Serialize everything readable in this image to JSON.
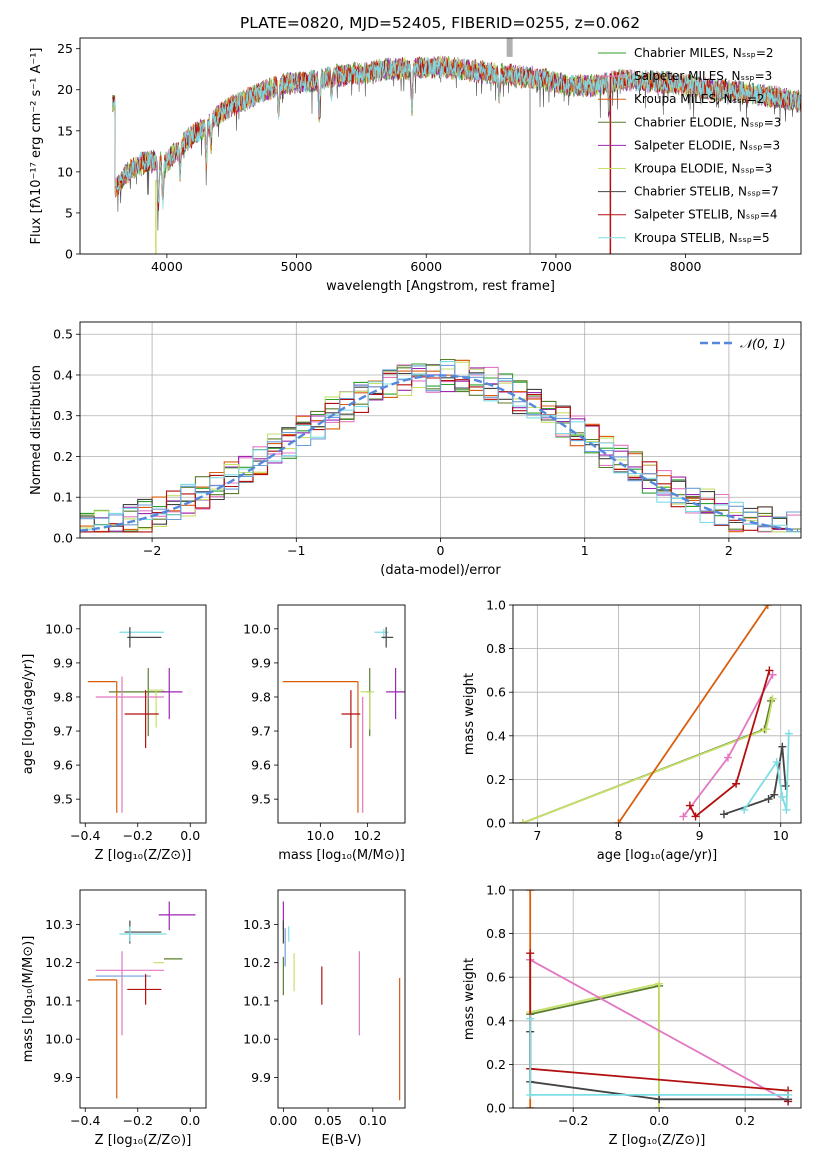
{
  "chart_data": [
    {
      "id": "spectrum",
      "type": "line",
      "title": "PLATE=0820, MJD=52405, FIBERID=0255, z=0.062",
      "xlabel": "wavelength [Angstrom, rest frame]",
      "ylabel": "Flux [fλ10⁻¹⁷ erg cm⁻² s⁻¹ A⁻¹]",
      "xlim": [
        3330,
        8890
      ],
      "ylim": [
        0,
        26.3
      ],
      "xticks": [
        4000,
        5000,
        6000,
        7000,
        8000
      ],
      "yticks": [
        0,
        5,
        10,
        15,
        20,
        25
      ],
      "legend_position": "upper right",
      "series": [
        {
          "name": "Chabrier MILES, Nₛₛₚ=2",
          "color": "#2ca02c"
        },
        {
          "name": "Salpeter MILES, Nₛₛₚ=3",
          "color": "#e377c2"
        },
        {
          "name": "Kroupa MILES, Nₛₛₚ=2",
          "color": "#d95f0e"
        },
        {
          "name": "Chabrier ELODIE, Nₛₛₚ=3",
          "color": "#5a7d2c"
        },
        {
          "name": "Salpeter ELODIE, Nₛₛₚ=3",
          "color": "#9c27b0"
        },
        {
          "name": "Kroupa ELODIE, Nₛₛₚ=3",
          "color": "#c6e06b"
        },
        {
          "name": "Chabrier STELIB, Nₛₛₚ=7",
          "color": "#444444"
        },
        {
          "name": "Salpeter STELIB, Nₛₛₚ=4",
          "color": "#b30f0f"
        },
        {
          "name": "Kroupa STELIB, Nₛₛₚ=5",
          "color": "#7ddde6"
        }
      ],
      "continuum": [
        [
          3600,
          8.0
        ],
        [
          3700,
          10.0
        ],
        [
          3800,
          11.0
        ],
        [
          3900,
          11.3
        ],
        [
          4000,
          11.2
        ],
        [
          4100,
          13.0
        ],
        [
          4200,
          14.5
        ],
        [
          4300,
          15.5
        ],
        [
          4400,
          17.0
        ],
        [
          4500,
          18.0
        ],
        [
          4700,
          19.5
        ],
        [
          4900,
          20.8
        ],
        [
          5100,
          21.0
        ],
        [
          5300,
          21.7
        ],
        [
          5500,
          22.0
        ],
        [
          5700,
          22.5
        ],
        [
          5900,
          22.6
        ],
        [
          6100,
          22.8
        ],
        [
          6300,
          22.5
        ],
        [
          6500,
          22.0
        ],
        [
          6700,
          21.7
        ],
        [
          6900,
          21.3
        ],
        [
          7100,
          20.5
        ],
        [
          7300,
          20.5
        ],
        [
          7500,
          21.2
        ],
        [
          7700,
          21.0
        ],
        [
          7900,
          20.8
        ],
        [
          8100,
          20.3
        ],
        [
          8300,
          19.9
        ],
        [
          8500,
          19.6
        ],
        [
          8700,
          19.1
        ],
        [
          8890,
          18.5
        ]
      ],
      "absorption_features": [
        {
          "x": 3934,
          "depth": 5.5
        },
        {
          "x": 3969,
          "depth": 4.5
        },
        {
          "x": 4102,
          "depth": 3.0
        },
        {
          "x": 4304,
          "depth": 4.5
        },
        {
          "x": 4341,
          "depth": 3.0
        },
        {
          "x": 4861,
          "depth": 3.0
        },
        {
          "x": 5175,
          "depth": 4.0
        },
        {
          "x": 5270,
          "depth": 2.0
        },
        {
          "x": 5890,
          "depth": 4.5
        },
        {
          "x": 6563,
          "depth": 2.5
        },
        {
          "x": 7410,
          "depth": 3.0
        }
      ]
    },
    {
      "id": "residuals",
      "type": "step-histogram",
      "xlabel": "(data-model)/error",
      "ylabel": "Normed distribution",
      "xlim": [
        -2.5,
        2.5
      ],
      "ylim": [
        0,
        0.53
      ],
      "xticks": [
        -2,
        -1,
        0,
        1,
        2
      ],
      "yticks": [
        0.0,
        0.1,
        0.2,
        0.3,
        0.4,
        0.5
      ],
      "bin_width": 0.1,
      "grid": true,
      "legend": [
        {
          "name": "𝒩(0, 1)",
          "color": "#5588dd",
          "style": "dashed"
        }
      ],
      "reference_curve": "normal(0,1) pdf",
      "series_colors": [
        "#2ca02c",
        "#e377c2",
        "#d95f0e",
        "#5a7d2c",
        "#9c27b0",
        "#c6e06b",
        "#444444",
        "#b30f0f",
        "#7ddde6",
        "#6f9fd8"
      ]
    },
    {
      "id": "age_vs_Z",
      "type": "errorbar",
      "xlabel": "Z [log₁₀(Z/Z⊙)]",
      "ylabel": "age  [log₁₀(age/yr)]",
      "xlim": [
        -0.42,
        0.06
      ],
      "ylim": [
        9.43,
        10.07
      ],
      "xticks": [
        -0.4,
        -0.2,
        0.0
      ],
      "yticks": [
        9.5,
        9.6,
        9.7,
        9.8,
        9.9,
        10.0
      ],
      "points": [
        {
          "x": -0.16,
          "y": 9.815,
          "xerr": [
            0.15,
            0.07
          ],
          "yerr": [
            0.13,
            0.07
          ],
          "color": "#5a7d2c"
        },
        {
          "x": -0.08,
          "y": 9.815,
          "xerr": [
            0.03,
            0.05
          ],
          "yerr": [
            0.08,
            0.07
          ],
          "color": "#9c27b0"
        },
        {
          "x": -0.13,
          "y": 9.82,
          "xerr": [
            0.03,
            0.03
          ],
          "yerr": [
            0.11,
            0.0
          ],
          "color": "#c6e06b"
        },
        {
          "x": -0.28,
          "y": 9.845,
          "xerr": [
            0.11,
            0.0
          ],
          "yerr": [
            0.385,
            0.0
          ],
          "color": "#d95f0e"
        },
        {
          "x": -0.26,
          "y": 9.8,
          "xerr": [
            0.1,
            0.16
          ],
          "yerr": [
            0.34,
            0.06
          ],
          "color": "#e377c2"
        },
        {
          "x": -0.23,
          "y": 9.99,
          "xerr": [
            0.04,
            0.13
          ],
          "yerr": [
            0.02,
            0.01
          ],
          "color": "#7ddde6"
        },
        {
          "x": -0.23,
          "y": 9.975,
          "xerr": [
            0.01,
            0.12
          ],
          "yerr": [
            0.03,
            0.03
          ],
          "color": "#444444"
        },
        {
          "x": -0.17,
          "y": 9.75,
          "xerr": [
            0.08,
            0.05
          ],
          "yerr": [
            0.1,
            0.07
          ],
          "color": "#b30f0f"
        }
      ]
    },
    {
      "id": "age_vs_mass",
      "type": "errorbar",
      "xlabel": "mass [log₁₀(M/M⊙)]",
      "ylabel": "",
      "xlim": [
        9.82,
        10.36
      ],
      "ylim": [
        9.43,
        10.07
      ],
      "xticks": [
        10.0,
        10.2
      ],
      "yticks": [
        9.5,
        9.6,
        9.7,
        9.8,
        9.9,
        10.0
      ],
      "points": [
        {
          "x": 10.21,
          "y": 9.815,
          "xerr": [
            0.015,
            0.005
          ],
          "yerr": [
            0.13,
            0.07
          ],
          "color": "#5a7d2c"
        },
        {
          "x": 10.32,
          "y": 9.815,
          "xerr": [
            0.04,
            0.04
          ],
          "yerr": [
            0.08,
            0.07
          ],
          "color": "#9c27b0"
        },
        {
          "x": 10.21,
          "y": 9.815,
          "xerr": [
            0.04,
            0.02
          ],
          "yerr": [
            0.11,
            0.0
          ],
          "color": "#c6e06b"
        },
        {
          "x": 10.16,
          "y": 9.845,
          "xerr": [
            0.32,
            0.0
          ],
          "yerr": [
            0.385,
            0.0
          ],
          "color": "#d95f0e"
        },
        {
          "x": 10.18,
          "y": 9.8,
          "xerr": [
            0.0,
            0.0
          ],
          "yerr": [
            0.34,
            0.0
          ],
          "color": "#e377c2"
        },
        {
          "x": 10.27,
          "y": 9.99,
          "xerr": [
            0.04,
            0.02
          ],
          "yerr": [
            0.02,
            0.01
          ],
          "color": "#7ddde6"
        },
        {
          "x": 10.28,
          "y": 9.975,
          "xerr": [
            0.02,
            0.03
          ],
          "yerr": [
            0.03,
            0.03
          ],
          "color": "#444444"
        },
        {
          "x": 10.13,
          "y": 9.75,
          "xerr": [
            0.04,
            0.04
          ],
          "yerr": [
            0.1,
            0.07
          ],
          "color": "#b30f0f"
        }
      ]
    },
    {
      "id": "weight_vs_age",
      "type": "line",
      "xlabel": "age  [log₁₀(age/yr)]",
      "ylabel": "mass weight",
      "xlim": [
        6.7,
        10.25
      ],
      "ylim": [
        0,
        1
      ],
      "xticks": [
        7,
        8,
        9,
        10
      ],
      "yticks": [
        0.0,
        0.2,
        0.4,
        0.6,
        0.8,
        1.0
      ],
      "grid": true,
      "series": [
        {
          "color": "#5a7d2c",
          "points": [
            [
              6.82,
              0.0
            ],
            [
              9.8,
              0.43
            ],
            [
              9.88,
              0.56
            ]
          ]
        },
        {
          "color": "#c6e06b",
          "points": [
            [
              6.82,
              0.0
            ],
            [
              9.82,
              0.43
            ],
            [
              9.9,
              0.57
            ]
          ]
        },
        {
          "color": "#d95f0e",
          "points": [
            [
              8.0,
              0.0
            ],
            [
              9.84,
              1.0
            ]
          ]
        },
        {
          "color": "#e377c2",
          "points": [
            [
              8.8,
              0.03
            ],
            [
              9.35,
              0.3
            ],
            [
              9.9,
              0.68
            ]
          ]
        },
        {
          "color": "#b30f0f",
          "points": [
            [
              8.88,
              0.08
            ],
            [
              8.95,
              0.03
            ],
            [
              9.45,
              0.18
            ],
            [
              9.86,
              0.7
            ]
          ]
        },
        {
          "color": "#444444",
          "points": [
            [
              9.3,
              0.04
            ],
            [
              9.85,
              0.11
            ],
            [
              9.92,
              0.13
            ],
            [
              10.02,
              0.35
            ],
            [
              10.06,
              0.17
            ]
          ]
        },
        {
          "color": "#7ddde6",
          "points": [
            [
              9.55,
              0.06
            ],
            [
              9.95,
              0.28
            ],
            [
              10.02,
              0.12
            ],
            [
              10.07,
              0.06
            ],
            [
              10.1,
              0.41
            ]
          ]
        }
      ]
    },
    {
      "id": "mass_vs_Z",
      "type": "errorbar",
      "xlabel": "Z [log₁₀(Z/Z⊙)]",
      "ylabel": "mass [log₁₀(M/M⊙)]",
      "xlim": [
        -0.42,
        0.06
      ],
      "ylim": [
        9.82,
        10.39
      ],
      "xticks": [
        -0.4,
        -0.2,
        0.0
      ],
      "yticks": [
        9.9,
        10.0,
        10.1,
        10.2,
        10.3
      ],
      "points": [
        {
          "x": -0.08,
          "y": 10.325,
          "xerr": [
            0.04,
            0.1
          ],
          "yerr": [
            0.04,
            0.035
          ],
          "color": "#9c27b0"
        },
        {
          "x": -0.23,
          "y": 10.28,
          "xerr": [
            0.02,
            0.12
          ],
          "yerr": [
            0.03,
            0.03
          ],
          "color": "#444444"
        },
        {
          "x": -0.23,
          "y": 10.275,
          "xerr": [
            0.04,
            0.14
          ],
          "yerr": [
            0.02,
            0.02
          ],
          "color": "#7ddde6"
        },
        {
          "x": -0.1,
          "y": 10.21,
          "xerr": [
            0.0,
            0.07
          ],
          "yerr": [
            0.0,
            0.0
          ],
          "color": "#5a7d2c"
        },
        {
          "x": -0.12,
          "y": 10.2,
          "xerr": [
            0.02,
            0.02
          ],
          "yerr": [
            0.0,
            0.0
          ],
          "color": "#c6e06b"
        },
        {
          "x": -0.26,
          "y": 10.18,
          "xerr": [
            0.1,
            0.16
          ],
          "yerr": [
            0.17,
            0.05
          ],
          "color": "#e377c2"
        },
        {
          "x": -0.26,
          "y": 10.165,
          "xerr": [
            0.1,
            0.11
          ],
          "yerr": [
            0.0,
            0.0
          ],
          "color": "#6f9fd8"
        },
        {
          "x": -0.28,
          "y": 10.155,
          "xerr": [
            0.11,
            0.0
          ],
          "yerr": [
            0.31,
            0.0
          ],
          "color": "#d95f0e"
        },
        {
          "x": -0.17,
          "y": 10.13,
          "xerr": [
            0.07,
            0.06
          ],
          "yerr": [
            0.04,
            0.04
          ],
          "color": "#b30f0f"
        }
      ]
    },
    {
      "id": "mass_vs_EBV",
      "type": "errorbar",
      "xlabel": "E(B-V)",
      "ylabel": "",
      "xlim": [
        -0.006,
        0.136
      ],
      "ylim": [
        9.82,
        10.39
      ],
      "xticks": [
        0.0,
        0.05,
        0.1
      ],
      "yticks": [
        9.9,
        10.0,
        10.1,
        10.2,
        10.3
      ],
      "points": [
        {
          "x": 0.0,
          "y": 10.325,
          "xerr": [
            0,
            0
          ],
          "yerr": [
            0.04,
            0.035
          ],
          "color": "#9c27b0"
        },
        {
          "x": 0.0,
          "y": 10.28,
          "xerr": [
            0,
            0
          ],
          "yerr": [
            0.03,
            0.03
          ],
          "color": "#444444"
        },
        {
          "x": 0.002,
          "y": 10.24,
          "xerr": [
            0,
            0
          ],
          "yerr": [
            0.05,
            0.05
          ],
          "color": "#6f9fd8"
        },
        {
          "x": 0.006,
          "y": 10.275,
          "xerr": [
            0,
            0
          ],
          "yerr": [
            0.02,
            0.02
          ],
          "color": "#7ddde6"
        },
        {
          "x": 0.0,
          "y": 10.175,
          "xerr": [
            0,
            0
          ],
          "yerr": [
            0.06,
            0.04
          ],
          "color": "#5a7d2c"
        },
        {
          "x": 0.012,
          "y": 10.175,
          "xerr": [
            0,
            0
          ],
          "yerr": [
            0.05,
            0.05
          ],
          "color": "#c6e06b"
        },
        {
          "x": 0.043,
          "y": 10.14,
          "xerr": [
            0,
            0
          ],
          "yerr": [
            0.05,
            0.05
          ],
          "color": "#b30f0f"
        },
        {
          "x": 0.085,
          "y": 10.12,
          "xerr": [
            0,
            0
          ],
          "yerr": [
            0.11,
            0.11
          ],
          "color": "#e377c2"
        },
        {
          "x": 0.13,
          "y": 10.0,
          "xerr": [
            0,
            0
          ],
          "yerr": [
            0.16,
            0.16
          ],
          "color": "#d95f0e"
        }
      ]
    },
    {
      "id": "weight_vs_Z",
      "type": "line",
      "xlabel": "Z [log₁₀(Z/Z⊙)]",
      "ylabel": "mass weight",
      "xlim": [
        -0.34,
        0.33
      ],
      "ylim": [
        0,
        1
      ],
      "xticks": [
        -0.2,
        0.0,
        0.2
      ],
      "yticks": [
        0.0,
        0.2,
        0.4,
        0.6,
        0.8,
        1.0
      ],
      "grid": true,
      "series": [
        {
          "color": "#d95f0e",
          "points": [
            [
              -0.3,
              0.0
            ],
            [
              -0.3,
              1.0
            ]
          ]
        },
        {
          "color": "#5a7d2c",
          "points": [
            [
              -0.3,
              0.43
            ],
            [
              0.0,
              0.56
            ],
            [
              0.0,
              0.0
            ]
          ]
        },
        {
          "color": "#c6e06b",
          "points": [
            [
              -0.3,
              0.44
            ],
            [
              0.0,
              0.57
            ],
            [
              0.0,
              0.0
            ]
          ]
        },
        {
          "color": "#e377c2",
          "points": [
            [
              -0.3,
              0.68
            ],
            [
              0.3,
              0.03
            ]
          ]
        },
        {
          "color": "#b30f0f",
          "points": [
            [
              -0.3,
              0.71
            ],
            [
              -0.3,
              0.18
            ],
            [
              0.3,
              0.08
            ],
            [
              0.3,
              0.03
            ]
          ]
        },
        {
          "color": "#444444",
          "points": [
            [
              -0.3,
              0.35
            ],
            [
              -0.3,
              0.12
            ],
            [
              0.0,
              0.04
            ],
            [
              0.3,
              0.04
            ]
          ]
        },
        {
          "color": "#7ddde6",
          "points": [
            [
              -0.3,
              0.41
            ],
            [
              -0.3,
              0.06
            ],
            [
              0.3,
              0.06
            ]
          ]
        }
      ]
    }
  ]
}
